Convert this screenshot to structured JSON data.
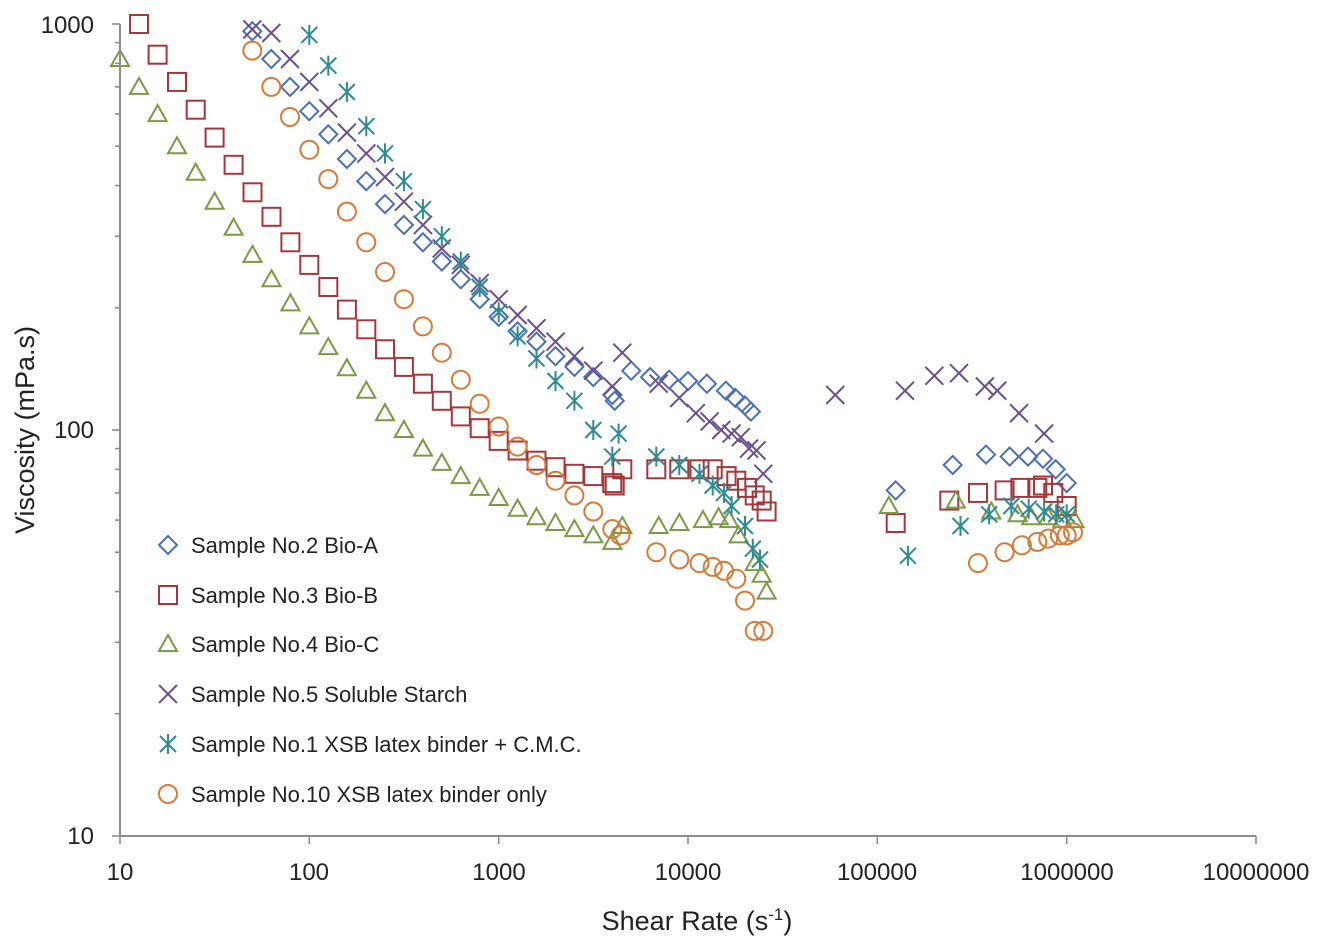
{
  "chart_data": {
    "type": "scatter",
    "title": "",
    "xlabel": "Shear Rate (s",
    "xlabel_sup": "-1",
    "xlabel_close": ")",
    "ylabel": "Viscosity (mPa.s)",
    "xscale": "log",
    "yscale": "log",
    "xlim": [
      10,
      10000000
    ],
    "ylim": [
      10,
      1000
    ],
    "x_ticks": [
      10,
      100,
      1000,
      10000,
      100000,
      1000000,
      10000000
    ],
    "x_tick_labels": [
      "10",
      "100",
      "1000",
      "10000",
      "100000",
      "1000000",
      "10000000"
    ],
    "y_ticks": [
      10,
      100,
      1000
    ],
    "y_tick_labels": [
      "10",
      "100",
      "1000"
    ],
    "grid": false,
    "legend_position": "bottom-left",
    "series": [
      {
        "name": "Sample No.2 Bio-A",
        "marker": "diamond",
        "color": "#4a6fb5",
        "points": [
          [
            50,
            960
          ],
          [
            63,
            820
          ],
          [
            79,
            700
          ],
          [
            100,
            610
          ],
          [
            126,
            535
          ],
          [
            158,
            465
          ],
          [
            200,
            410
          ],
          [
            251,
            360
          ],
          [
            316,
            320
          ],
          [
            398,
            290
          ],
          [
            501,
            260
          ],
          [
            631,
            235
          ],
          [
            794,
            210
          ],
          [
            1000,
            190
          ],
          [
            1259,
            175
          ],
          [
            1585,
            165
          ],
          [
            1995,
            152
          ],
          [
            2512,
            143
          ],
          [
            3162,
            135
          ],
          [
            3981,
            122
          ],
          [
            4100,
            118
          ],
          [
            5012,
            140
          ],
          [
            6310,
            135
          ],
          [
            7943,
            133
          ],
          [
            10000,
            132
          ],
          [
            12589,
            130
          ],
          [
            15849,
            125
          ],
          [
            17783,
            120
          ],
          [
            19953,
            115
          ],
          [
            21500,
            111
          ],
          [
            125000,
            71
          ],
          [
            250000,
            82
          ],
          [
            375000,
            87
          ],
          [
            500000,
            86
          ],
          [
            625000,
            86
          ],
          [
            750000,
            85
          ],
          [
            875000,
            80
          ],
          [
            1000000,
            74
          ]
        ]
      },
      {
        "name": "Sample No.3 Bio-B",
        "marker": "square",
        "color": "#a3373a",
        "points": [
          [
            12.6,
            1000
          ],
          [
            15.8,
            840
          ],
          [
            20,
            720
          ],
          [
            25.1,
            615
          ],
          [
            31.6,
            525
          ],
          [
            39.8,
            450
          ],
          [
            50.1,
            385
          ],
          [
            63.1,
            335
          ],
          [
            79.4,
            290
          ],
          [
            100,
            255
          ],
          [
            126,
            225
          ],
          [
            158,
            198
          ],
          [
            200,
            177
          ],
          [
            251,
            158
          ],
          [
            316,
            143
          ],
          [
            398,
            130
          ],
          [
            501,
            118
          ],
          [
            631,
            108
          ],
          [
            794,
            101
          ],
          [
            1000,
            94
          ],
          [
            1259,
            89
          ],
          [
            1585,
            84
          ],
          [
            1995,
            81
          ],
          [
            2512,
            78
          ],
          [
            3162,
            77
          ],
          [
            3981,
            74
          ],
          [
            4100,
            73
          ],
          [
            4500,
            80
          ],
          [
            6800,
            80
          ],
          [
            9000,
            80
          ],
          [
            11500,
            80
          ],
          [
            13500,
            80
          ],
          [
            16000,
            77
          ],
          [
            18000,
            75
          ],
          [
            20500,
            72
          ],
          [
            22500,
            69
          ],
          [
            24500,
            67
          ],
          [
            26000,
            63
          ],
          [
            125000,
            59
          ],
          [
            240000,
            67
          ],
          [
            340000,
            70
          ],
          [
            470000,
            71
          ],
          [
            570000,
            72
          ],
          [
            700000,
            72
          ],
          [
            750000,
            73
          ],
          [
            850000,
            70
          ],
          [
            1000000,
            65
          ]
        ]
      },
      {
        "name": "Sample No.4 Bio-C",
        "marker": "triangle",
        "color": "#7a9a45",
        "points": [
          [
            10,
            820
          ],
          [
            12.6,
            700
          ],
          [
            15.8,
            600
          ],
          [
            20,
            500
          ],
          [
            25.1,
            430
          ],
          [
            31.6,
            365
          ],
          [
            39.8,
            315
          ],
          [
            50.1,
            270
          ],
          [
            63.1,
            235
          ],
          [
            79.4,
            205
          ],
          [
            100,
            180
          ],
          [
            126,
            160
          ],
          [
            158,
            142
          ],
          [
            200,
            125
          ],
          [
            251,
            110
          ],
          [
            316,
            100
          ],
          [
            398,
            90
          ],
          [
            501,
            83
          ],
          [
            631,
            77
          ],
          [
            794,
            72
          ],
          [
            1000,
            68
          ],
          [
            1259,
            64
          ],
          [
            1585,
            61
          ],
          [
            1995,
            59
          ],
          [
            2512,
            57
          ],
          [
            3162,
            55
          ],
          [
            3981,
            53
          ],
          [
            4500,
            58
          ],
          [
            7000,
            58
          ],
          [
            9000,
            59
          ],
          [
            12000,
            60
          ],
          [
            14500,
            61
          ],
          [
            16500,
            60
          ],
          [
            18500,
            55
          ],
          [
            22500,
            47
          ],
          [
            24500,
            44
          ],
          [
            26000,
            40
          ],
          [
            115000,
            65
          ],
          [
            260000,
            67
          ],
          [
            400000,
            63
          ],
          [
            550000,
            62
          ],
          [
            650000,
            61
          ],
          [
            800000,
            61
          ],
          [
            950000,
            60
          ],
          [
            1100000,
            60
          ]
        ]
      },
      {
        "name": "Sample No.5 Soluble Starch",
        "marker": "x",
        "color": "#6b4f8e",
        "points": [
          [
            50,
            970
          ],
          [
            63,
            950
          ],
          [
            79,
            820
          ],
          [
            100,
            720
          ],
          [
            126,
            620
          ],
          [
            158,
            540
          ],
          [
            200,
            480
          ],
          [
            251,
            420
          ],
          [
            316,
            365
          ],
          [
            398,
            320
          ],
          [
            501,
            280
          ],
          [
            631,
            255
          ],
          [
            794,
            230
          ],
          [
            1000,
            210
          ],
          [
            1259,
            192
          ],
          [
            1585,
            178
          ],
          [
            1995,
            165
          ],
          [
            2512,
            152
          ],
          [
            3162,
            140
          ],
          [
            3981,
            128
          ],
          [
            4500,
            155
          ],
          [
            7000,
            130
          ],
          [
            9000,
            120
          ],
          [
            11000,
            110
          ],
          [
            13000,
            105
          ],
          [
            15000,
            100
          ],
          [
            17000,
            98
          ],
          [
            19000,
            96
          ],
          [
            21000,
            90
          ],
          [
            23000,
            89
          ],
          [
            25000,
            78
          ],
          [
            60000,
            122
          ],
          [
            140000,
            125
          ],
          [
            200000,
            136
          ],
          [
            270000,
            138
          ],
          [
            370000,
            128
          ],
          [
            430000,
            125
          ],
          [
            560000,
            110
          ],
          [
            760000,
            98
          ]
        ]
      },
      {
        "name": "Sample No.1 XSB latex binder + C.M.C.",
        "marker": "asterisk",
        "color": "#2f8a93",
        "points": [
          [
            100,
            940
          ],
          [
            126,
            790
          ],
          [
            158,
            680
          ],
          [
            200,
            560
          ],
          [
            251,
            480
          ],
          [
            316,
            410
          ],
          [
            398,
            350
          ],
          [
            501,
            300
          ],
          [
            631,
            260
          ],
          [
            794,
            225
          ],
          [
            1000,
            195
          ],
          [
            1259,
            170
          ],
          [
            1585,
            150
          ],
          [
            1995,
            132
          ],
          [
            2512,
            118
          ],
          [
            3162,
            100
          ],
          [
            3981,
            86
          ],
          [
            4300,
            98
          ],
          [
            6800,
            86
          ],
          [
            9000,
            82
          ],
          [
            11500,
            78
          ],
          [
            13500,
            73
          ],
          [
            15500,
            70
          ],
          [
            17000,
            65
          ],
          [
            20000,
            58
          ],
          [
            22000,
            51
          ],
          [
            24000,
            48
          ],
          [
            145000,
            49
          ],
          [
            275000,
            58
          ],
          [
            390000,
            62
          ],
          [
            510000,
            65
          ],
          [
            630000,
            64
          ],
          [
            760000,
            63
          ],
          [
            880000,
            62
          ],
          [
            1000000,
            62
          ]
        ]
      },
      {
        "name": "Sample No.10 XSB latex binder only",
        "marker": "circle",
        "color": "#d67a39",
        "points": [
          [
            50,
            860
          ],
          [
            63,
            700
          ],
          [
            79,
            590
          ],
          [
            100,
            490
          ],
          [
            126,
            415
          ],
          [
            158,
            345
          ],
          [
            200,
            290
          ],
          [
            251,
            245
          ],
          [
            316,
            210
          ],
          [
            398,
            180
          ],
          [
            501,
            155
          ],
          [
            631,
            133
          ],
          [
            794,
            116
          ],
          [
            1000,
            102
          ],
          [
            1259,
            91
          ],
          [
            1585,
            82
          ],
          [
            1995,
            75
          ],
          [
            2512,
            69
          ],
          [
            3162,
            63
          ],
          [
            3981,
            57
          ],
          [
            4400,
            55
          ],
          [
            6800,
            50
          ],
          [
            9000,
            48
          ],
          [
            11500,
            47
          ],
          [
            13500,
            46
          ],
          [
            15500,
            45
          ],
          [
            18000,
            43
          ],
          [
            20000,
            38
          ],
          [
            22500,
            32
          ],
          [
            25000,
            32
          ],
          [
            340000,
            47
          ],
          [
            470000,
            50
          ],
          [
            580000,
            52
          ],
          [
            700000,
            53
          ],
          [
            800000,
            54
          ],
          [
            920000,
            55
          ],
          [
            1000000,
            55
          ],
          [
            1080000,
            56
          ]
        ]
      }
    ]
  }
}
